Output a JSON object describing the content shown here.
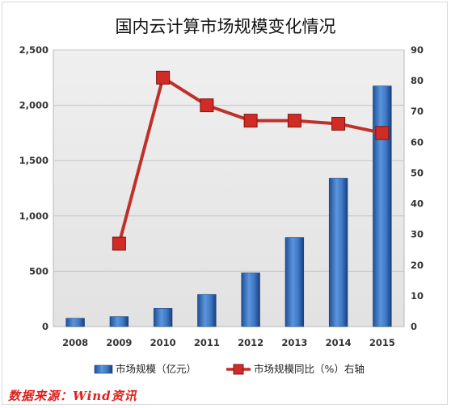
{
  "chart_data": {
    "type": "bar",
    "title": "国内云计算市场规模变化情况",
    "categories": [
      "2008",
      "2009",
      "2010",
      "2011",
      "2012",
      "2013",
      "2014",
      "2015"
    ],
    "series": [
      {
        "name": "市场规模（亿元）",
        "type": "bar",
        "axis": "left",
        "color": "#3f78c4",
        "values": [
          75,
          90,
          165,
          290,
          485,
          805,
          1340,
          2175
        ]
      },
      {
        "name": "市场规模同比（%）右轴",
        "type": "line",
        "axis": "right",
        "color": "#c0302a",
        "values": [
          null,
          27,
          81,
          72,
          67,
          67,
          66,
          63
        ]
      }
    ],
    "y_left": {
      "min": 0,
      "max": 2500,
      "step": 500,
      "tick_labels": [
        "0",
        "500",
        "1,000",
        "1,500",
        "2,000",
        "2,500"
      ]
    },
    "y_right": {
      "min": 0,
      "max": 90,
      "step": 10,
      "tick_labels": [
        "0",
        "10",
        "20",
        "30",
        "40",
        "50",
        "60",
        "70",
        "80",
        "90"
      ]
    },
    "grid": true,
    "legend_position": "bottom"
  },
  "source_note": "数据来源：Wind资讯"
}
